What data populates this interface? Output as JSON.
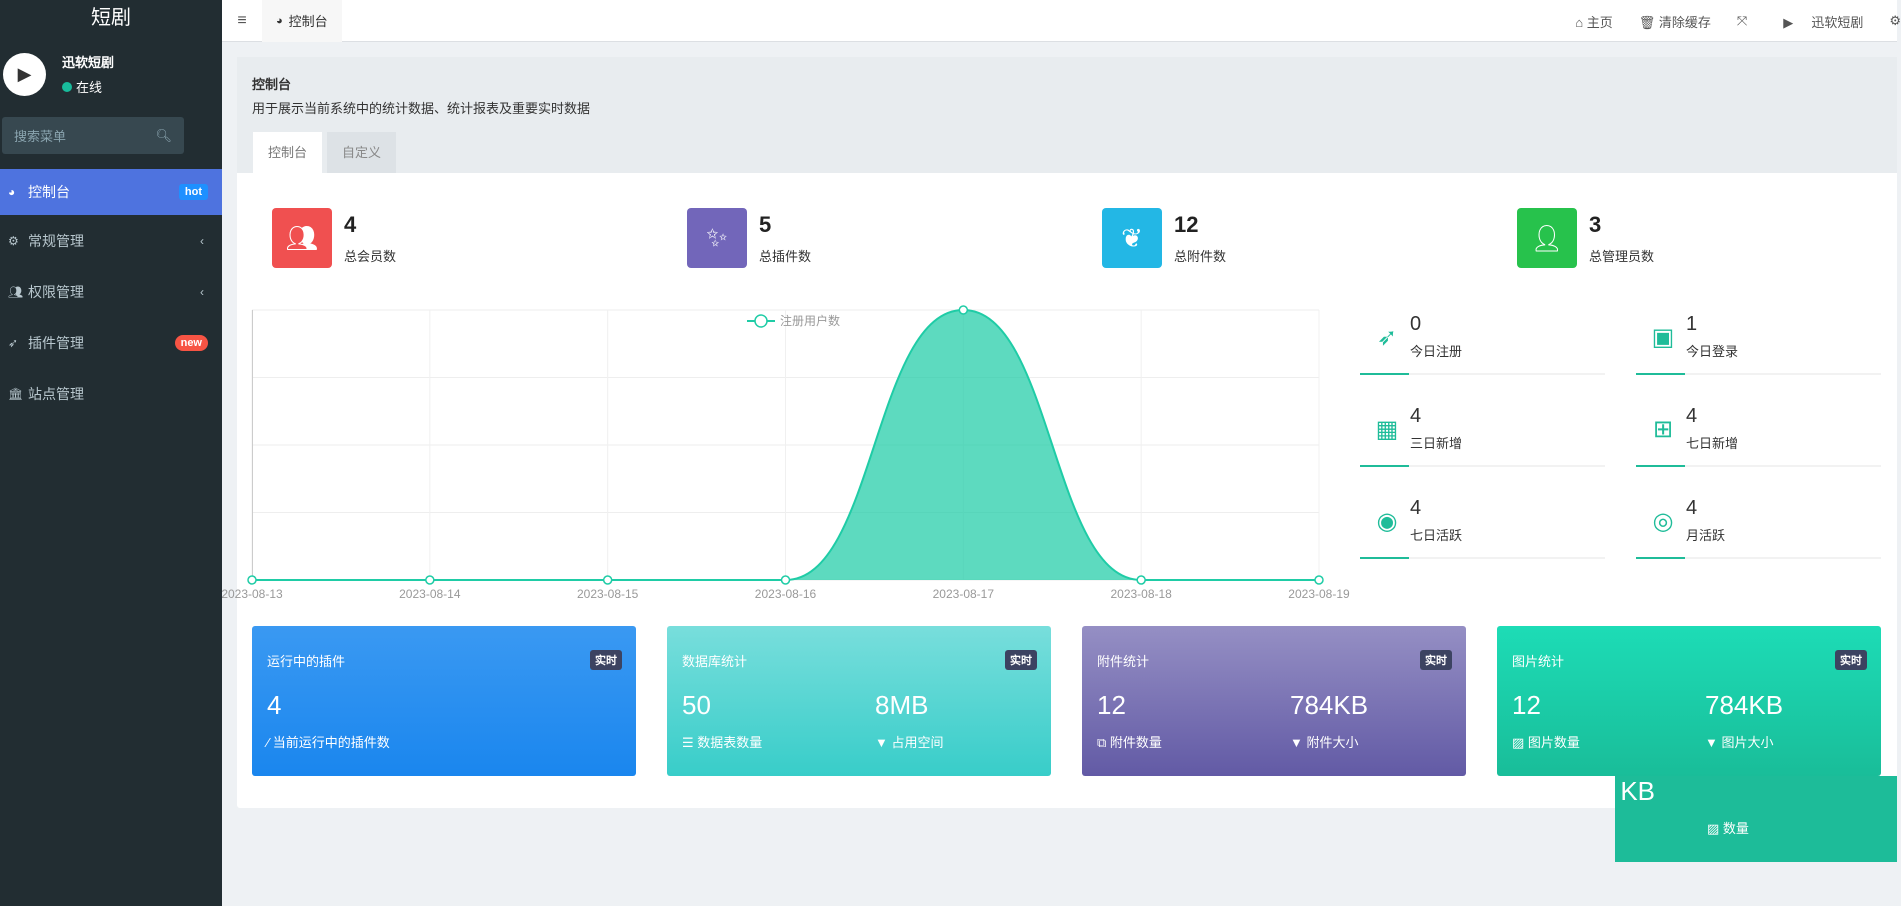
{
  "sidebar": {
    "logo": "短剧",
    "user": {
      "name": "迅软短剧",
      "status": "在线"
    },
    "search_placeholder": "搜索菜单",
    "items": [
      {
        "label": "控制台",
        "badge": "hot"
      },
      {
        "label": "常规管理"
      },
      {
        "label": "权限管理"
      },
      {
        "label": "插件管理",
        "badge": "new"
      },
      {
        "label": "站点管理"
      }
    ]
  },
  "header": {
    "tab": "控制台",
    "home": "主页",
    "clear_cache": "清除缓存",
    "username": "迅软短剧"
  },
  "page": {
    "title": "控制台",
    "description": "用于展示当前系统中的统计数据、统计报表及重要实时数据",
    "tabs": [
      "控制台",
      "自定义"
    ]
  },
  "stats": [
    {
      "value": "4",
      "label": "总会员数",
      "color": "#f05050"
    },
    {
      "value": "5",
      "label": "总插件数",
      "color": "#7266ba"
    },
    {
      "value": "12",
      "label": "总附件数",
      "color": "#23b7e5"
    },
    {
      "value": "3",
      "label": "总管理员数",
      "color": "#27c24c"
    }
  ],
  "side_stats": [
    {
      "value": "0",
      "label": "今日注册"
    },
    {
      "value": "1",
      "label": "今日登录"
    },
    {
      "value": "4",
      "label": "三日新增"
    },
    {
      "value": "4",
      "label": "七日新增"
    },
    {
      "value": "4",
      "label": "七日活跃"
    },
    {
      "value": "4",
      "label": "月活跃"
    }
  ],
  "chart_data": {
    "type": "area",
    "legend": "注册用户数",
    "x": [
      "2023-08-13",
      "2023-08-14",
      "2023-08-15",
      "2023-08-16",
      "2023-08-17",
      "2023-08-18",
      "2023-08-19"
    ],
    "values": [
      0,
      0,
      0,
      0,
      4,
      0,
      0
    ],
    "ylim": [
      0,
      4
    ],
    "color": "#1fcca6"
  },
  "cards": [
    {
      "title": "运行中的插件",
      "badge": "实时",
      "items": [
        {
          "value": "4",
          "label": "当前运行中的插件数"
        }
      ]
    },
    {
      "title": "数据库统计",
      "badge": "实时",
      "items": [
        {
          "value": "50",
          "label": "数据表数量"
        },
        {
          "value": "8MB",
          "label": "占用空间"
        }
      ]
    },
    {
      "title": "附件统计",
      "badge": "实时",
      "items": [
        {
          "value": "12",
          "label": "附件数量"
        },
        {
          "value": "784KB",
          "label": "附件大小"
        }
      ]
    },
    {
      "title": "图片统计",
      "badge": "实时",
      "items": [
        {
          "value": "12",
          "label": "图片数量"
        },
        {
          "value": "784KB",
          "label": "图片大小"
        }
      ]
    }
  ],
  "ghost": {
    "value": "KB",
    "label": "数量"
  }
}
